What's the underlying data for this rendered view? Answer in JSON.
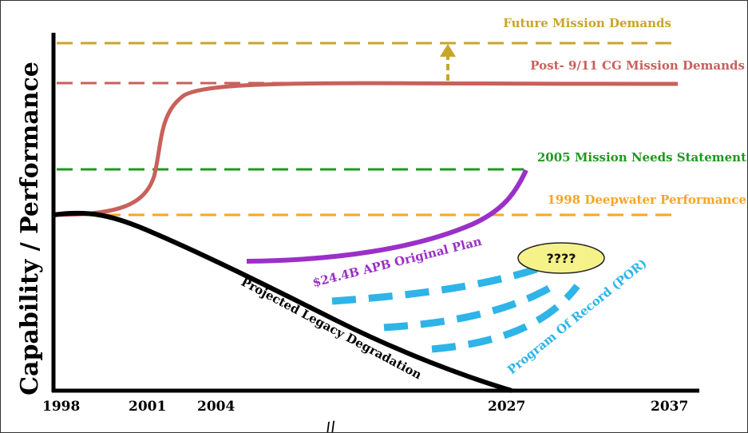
{
  "axis": {
    "y_title": "Capability / Performance",
    "x_ticks": [
      "1998",
      "2001",
      "2004",
      "2027",
      "2037"
    ],
    "break_mark": "//"
  },
  "levels": {
    "future": "Future Mission Demands",
    "post911": "Post- 9/11 CG Mission Demands",
    "mns2005": "2005 Mission Needs Statement",
    "deepwater1998": "1998 Deepwater Performance"
  },
  "curves": {
    "original_plan": "$24.4B APB Original Plan",
    "legacy": "Projected Legacy Degradation",
    "por": "Program Of Record (POR)"
  },
  "bubble": "????",
  "colors": {
    "future": "#c8a52a",
    "post911": "#c9605a",
    "mns2005": "#1f9a1f",
    "deepwater1998": "#f5a623",
    "original_plan": "#9b30c8",
    "legacy": "#000000",
    "por": "#2eb4e8",
    "bubble_fill": "#f5f28a"
  }
}
